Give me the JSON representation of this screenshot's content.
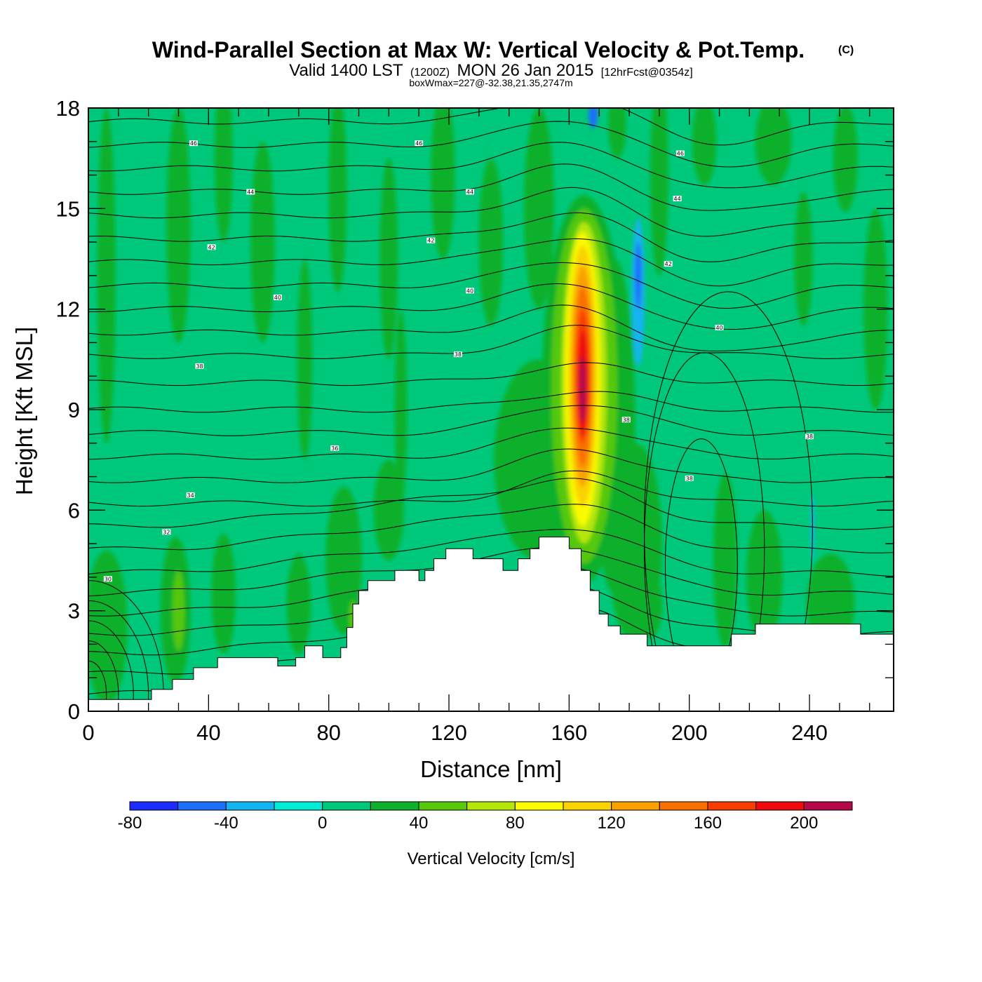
{
  "header": {
    "title": "Wind-Parallel Section at Max W: Vertical Velocity & Pot.Temp.",
    "copyright": "(C)",
    "valid_prefix": "Valid 1400 LST",
    "utc": "(1200Z)",
    "date": "MON 26 Jan 2015",
    "forecast": "[12hrFcst@0354z]",
    "boxwmax": "boxWmax=227@-32.38,21.35,2747m"
  },
  "chart_data": {
    "type": "heatmap",
    "title": "Wind-Parallel Section at Max W: Vertical Velocity & Pot.Temp.",
    "xlabel": "Distance [nm]",
    "ylabel": "Height [Kft MSL]",
    "xlim": [
      0,
      268
    ],
    "ylim": [
      0,
      18
    ],
    "xticks": [
      "0",
      "40",
      "80",
      "120",
      "160",
      "200",
      "240"
    ],
    "yticks": [
      "0",
      "3",
      "6",
      "9",
      "12",
      "15",
      "18"
    ],
    "colorbar": {
      "title": "Vertical Velocity [cm/s]",
      "labels": [
        "-80",
        "-40",
        "0",
        "40",
        "80",
        "120",
        "160",
        "200"
      ],
      "bin_edges": [
        -80,
        -60,
        -40,
        -20,
        0,
        20,
        40,
        60,
        80,
        100,
        120,
        140,
        160,
        180,
        200,
        220
      ],
      "colors": [
        "#1e2bff",
        "#1e6efa",
        "#12b4f0",
        "#00ebd5",
        "#00c87a",
        "#0cb02a",
        "#55c80c",
        "#b4e60a",
        "#fafa00",
        "#fad200",
        "#faa000",
        "#fa7000",
        "#fa3c00",
        "#ee0a0a",
        "#b4084a"
      ]
    },
    "terrain_kft": [
      [
        0,
        0.35
      ],
      [
        21,
        0.35
      ],
      [
        21,
        0.65
      ],
      [
        28,
        0.65
      ],
      [
        28,
        0.95
      ],
      [
        35,
        0.95
      ],
      [
        35,
        1.3
      ],
      [
        43,
        1.3
      ],
      [
        43,
        1.6
      ],
      [
        63,
        1.6
      ],
      [
        63,
        1.35
      ],
      [
        69,
        1.35
      ],
      [
        69,
        1.6
      ],
      [
        72,
        1.6
      ],
      [
        72,
        1.95
      ],
      [
        78,
        1.95
      ],
      [
        78,
        1.6
      ],
      [
        84,
        1.6
      ],
      [
        84,
        1.9
      ],
      [
        86,
        1.9
      ],
      [
        86,
        2.5
      ],
      [
        88,
        2.5
      ],
      [
        88,
        3.2
      ],
      [
        90,
        3.2
      ],
      [
        90,
        3.6
      ],
      [
        93,
        3.6
      ],
      [
        93,
        3.9
      ],
      [
        102,
        3.9
      ],
      [
        102,
        4.2
      ],
      [
        110,
        4.2
      ],
      [
        110,
        3.9
      ],
      [
        112,
        3.9
      ],
      [
        112,
        4.2
      ],
      [
        115,
        4.2
      ],
      [
        115,
        4.55
      ],
      [
        119,
        4.55
      ],
      [
        119,
        4.85
      ],
      [
        128,
        4.85
      ],
      [
        128,
        4.55
      ],
      [
        138,
        4.55
      ],
      [
        138,
        4.2
      ],
      [
        143,
        4.2
      ],
      [
        143,
        4.55
      ],
      [
        147,
        4.55
      ],
      [
        147,
        4.85
      ],
      [
        150,
        4.85
      ],
      [
        150,
        5.2
      ],
      [
        160,
        5.2
      ],
      [
        160,
        4.85
      ],
      [
        164,
        4.85
      ],
      [
        164,
        4.2
      ],
      [
        167,
        4.2
      ],
      [
        167,
        3.6
      ],
      [
        170,
        3.6
      ],
      [
        170,
        2.9
      ],
      [
        173,
        2.9
      ],
      [
        173,
        2.55
      ],
      [
        177,
        2.55
      ],
      [
        177,
        2.3
      ],
      [
        186,
        2.3
      ],
      [
        186,
        1.95
      ],
      [
        214,
        1.95
      ],
      [
        214,
        2.3
      ],
      [
        222,
        2.3
      ],
      [
        222,
        2.6
      ],
      [
        257,
        2.6
      ],
      [
        257,
        2.3
      ],
      [
        268,
        2.3
      ]
    ],
    "theta_contours": [
      {
        "label": "30",
        "x": 6.5,
        "y": 3.95
      },
      {
        "label": "32",
        "x": 26,
        "y": 5.35
      },
      {
        "label": "34",
        "x": 34,
        "y": 6.45
      },
      {
        "label": "36",
        "x": 82,
        "y": 7.85
      },
      {
        "label": "38",
        "x": 37,
        "y": 10.3
      },
      {
        "label": "38",
        "x": 123,
        "y": 10.65
      },
      {
        "label": "38",
        "x": 179,
        "y": 8.7
      },
      {
        "label": "38",
        "x": 200,
        "y": 6.95
      },
      {
        "label": "38",
        "x": 240,
        "y": 8.2
      },
      {
        "label": "40",
        "x": 63,
        "y": 12.35
      },
      {
        "label": "40",
        "x": 127,
        "y": 12.55
      },
      {
        "label": "40",
        "x": 210,
        "y": 11.45
      },
      {
        "label": "42",
        "x": 41,
        "y": 13.85
      },
      {
        "label": "42",
        "x": 114,
        "y": 14.05
      },
      {
        "label": "42",
        "x": 193,
        "y": 13.35
      },
      {
        "label": "44",
        "x": 54,
        "y": 15.5
      },
      {
        "label": "44",
        "x": 127,
        "y": 15.5
      },
      {
        "label": "44",
        "x": 196,
        "y": 15.3
      },
      {
        "label": "46",
        "x": 35,
        "y": 16.95
      },
      {
        "label": "46",
        "x": 110,
        "y": 16.95
      },
      {
        "label": "46",
        "x": 197,
        "y": 16.65
      }
    ]
  }
}
